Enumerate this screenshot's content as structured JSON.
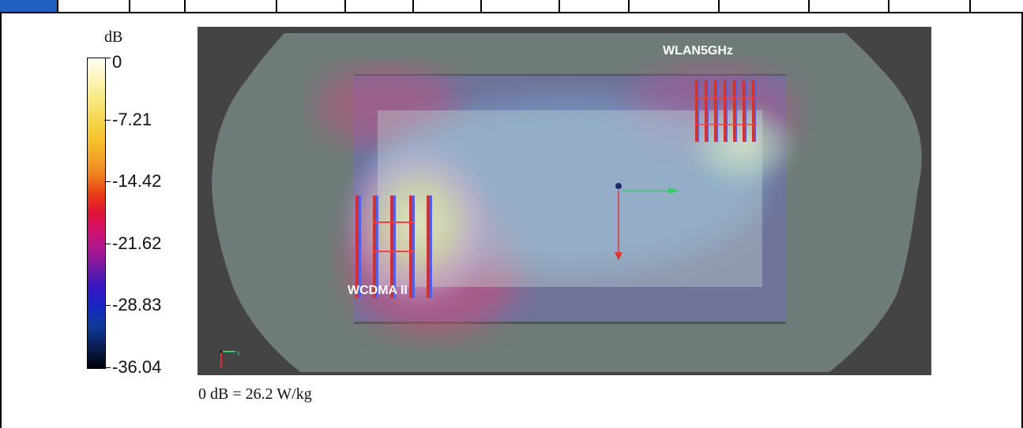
{
  "scale": {
    "unit": "dB",
    "ticks": [
      "0",
      "-7.21",
      "-14.42",
      "-21.62",
      "-28.83",
      "-36.04"
    ],
    "colors": [
      "#fffdf2",
      "#f5d54d",
      "#e63a15",
      "#a8168e",
      "#1626c2",
      "#020207"
    ]
  },
  "labels": {
    "antenna_1": "WLAN5GHz",
    "antenna_2": "WCDMA II"
  },
  "footnote": "0 dB = 26.2 W/kg",
  "colors": {
    "background": "#444444",
    "phantom": "#6d7a78",
    "accent": "#1f5fbf"
  }
}
